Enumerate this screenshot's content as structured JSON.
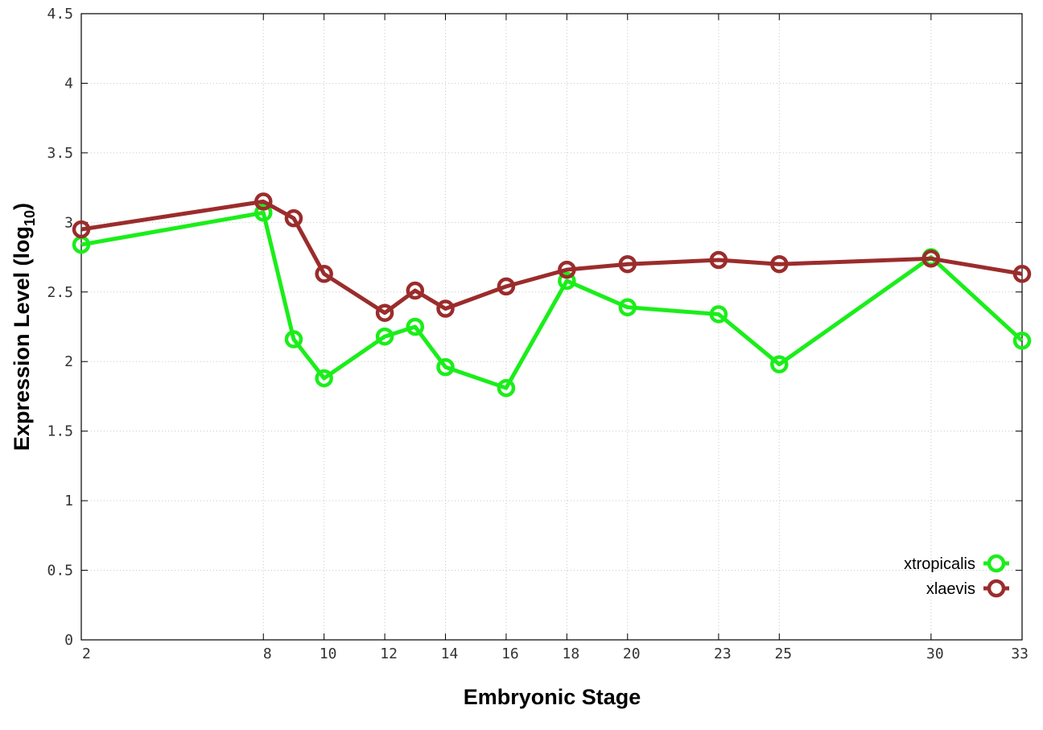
{
  "chart_data": {
    "type": "line",
    "x": [
      2,
      8,
      9,
      10,
      12,
      13,
      14,
      16,
      18,
      20,
      23,
      25,
      30,
      33
    ],
    "x_ticks": [
      2,
      8,
      10,
      12,
      14,
      16,
      18,
      20,
      23,
      25,
      30,
      33
    ],
    "xlim": [
      2,
      33
    ],
    "ylim": [
      0,
      4.5
    ],
    "y_ticks": [
      "0",
      "0.5",
      "1",
      "1.5",
      "2",
      "2.5",
      "3",
      "3.5",
      "4",
      "4.5"
    ],
    "xlabel": "Embryonic Stage",
    "ylabel": "Expression Level (log",
    "ylabel_sub": "10",
    "ylabel_end": ")",
    "grid": true,
    "legend_position": "bottom-right",
    "series": [
      {
        "name": "xtropicalis",
        "color": "#1aee1a",
        "values": [
          2.84,
          3.07,
          2.16,
          1.88,
          2.18,
          2.25,
          1.96,
          1.81,
          2.58,
          2.39,
          2.34,
          1.98,
          2.75,
          2.15
        ]
      },
      {
        "name": "xlaevis",
        "color": "#9b2c2c",
        "values": [
          2.95,
          3.15,
          3.03,
          2.63,
          2.35,
          2.51,
          2.38,
          2.54,
          2.66,
          2.7,
          2.73,
          2.7,
          2.74,
          2.63
        ]
      }
    ]
  }
}
